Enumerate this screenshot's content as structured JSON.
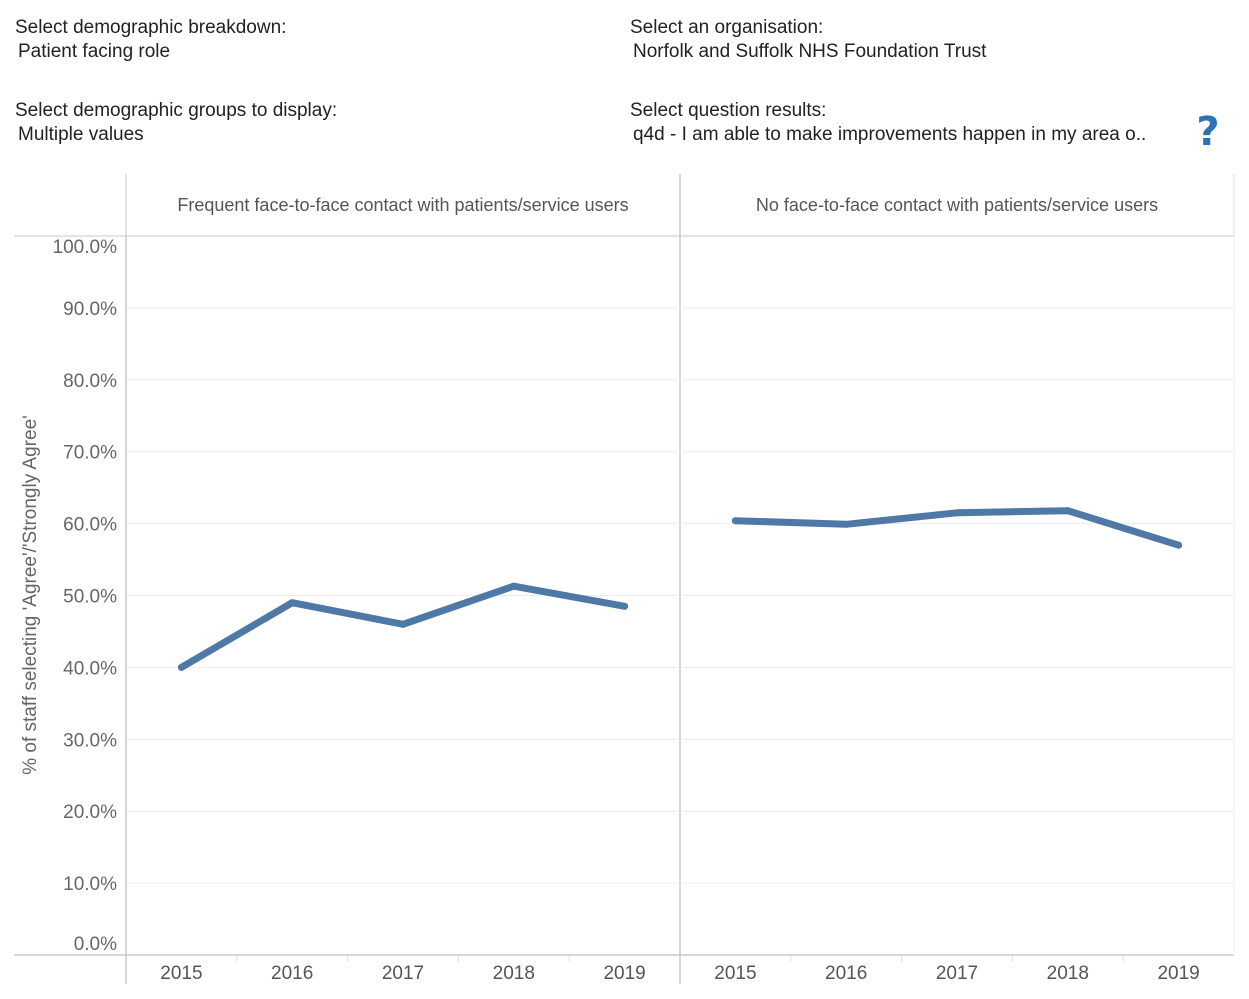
{
  "filters": {
    "breakdown": {
      "label": "Select demographic breakdown:",
      "value": "Patient facing role"
    },
    "groups": {
      "label": "Select demographic groups to display:",
      "value": "Multiple values"
    },
    "organisation": {
      "label": "Select an organisation:",
      "value": "Norfolk and Suffolk NHS Foundation Trust"
    },
    "question": {
      "label": "Select question results:",
      "value": "q4d - I am able to make improvements happen in my area o.."
    }
  },
  "help": {
    "icon": "question-mark-icon",
    "glyph": "?"
  },
  "chart_data": {
    "type": "line",
    "ylabel": "% of staff selecting 'Agree'/'Strongly Agree'",
    "ylim": [
      0,
      100
    ],
    "yticks": [
      "100.0%",
      "90.0%",
      "80.0%",
      "70.0%",
      "60.0%",
      "50.0%",
      "40.0%",
      "30.0%",
      "20.0%",
      "10.0%",
      "0.0%"
    ],
    "ytick_values": [
      100,
      90,
      80,
      70,
      60,
      50,
      40,
      30,
      20,
      10,
      0
    ],
    "categories": [
      "2015",
      "2016",
      "2017",
      "2018",
      "2019"
    ],
    "line_color": "#4e79a7",
    "grid": true,
    "panels": [
      {
        "title": "Frequent face-to-face contact with patients/service users",
        "values": [
          40.0,
          49.0,
          46.0,
          51.3,
          48.5
        ]
      },
      {
        "title": "No face-to-face contact with patients/service users",
        "values": [
          60.4,
          59.9,
          61.5,
          61.8,
          57.0
        ]
      }
    ]
  }
}
